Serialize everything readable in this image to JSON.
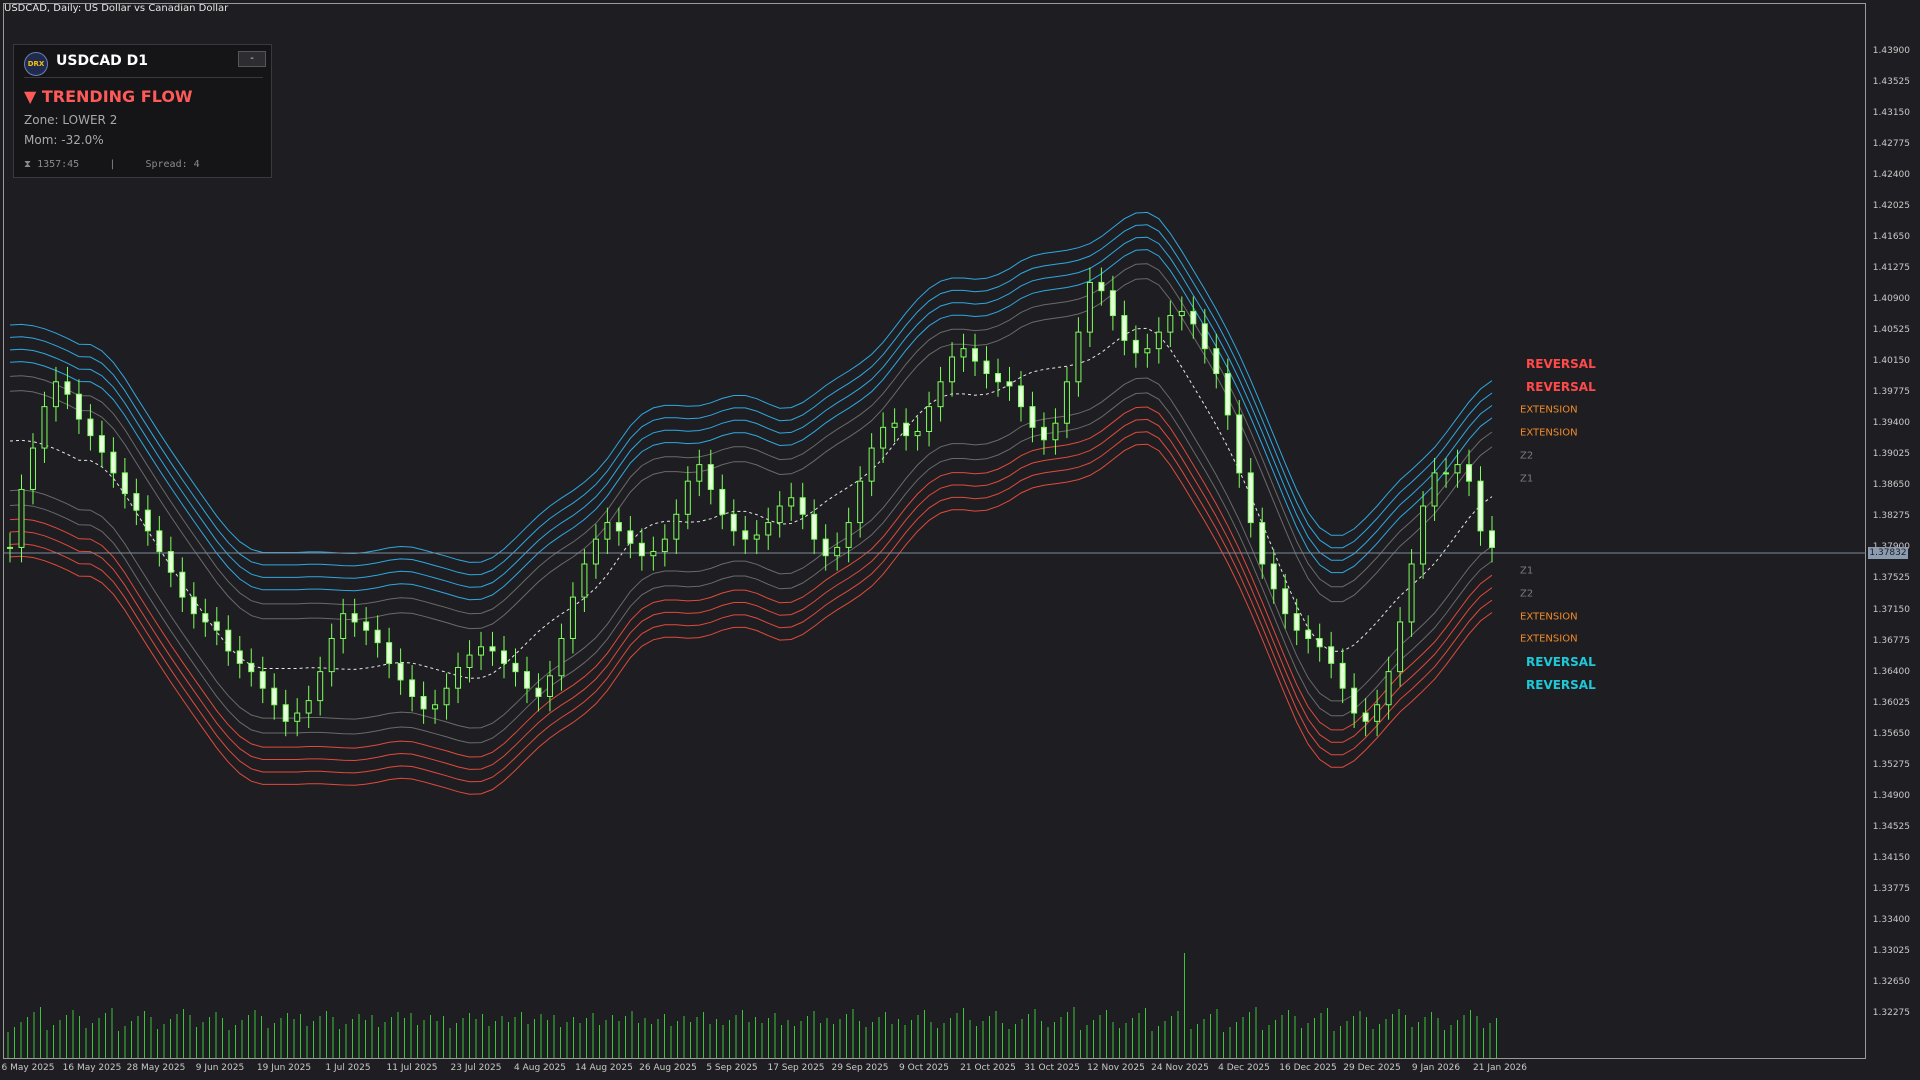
{
  "window": {
    "title": "USDCAD, Daily:  US Dollar vs Canadian Dollar"
  },
  "info_panel": {
    "logo_text": "DRX",
    "symbol": "USDCAD  D1",
    "minimize_label": "-",
    "signal": "▼ TRENDING FLOW",
    "zone": "Zone: LOWER 2",
    "momentum": "Mom: -32.0%",
    "timer_icon": "hourglass-icon",
    "timer": "1357:45",
    "divider": "|",
    "spread": "Spread: 4"
  },
  "price_axis": {
    "labels": [
      "1.43900",
      "1.43525",
      "1.43150",
      "1.42775",
      "1.42400",
      "1.42025",
      "1.41650",
      "1.41275",
      "1.40900",
      "1.40525",
      "1.40150",
      "1.39775",
      "1.39400",
      "1.39025",
      "1.38650",
      "1.38275",
      "1.37900",
      "1.37525",
      "1.37150",
      "1.36775",
      "1.36400",
      "1.36025",
      "1.35650",
      "1.35275",
      "1.34900",
      "1.34525",
      "1.34150",
      "1.33775",
      "1.33400",
      "1.33025",
      "1.32650",
      "1.32275"
    ],
    "current_price": "1.37832"
  },
  "time_axis": {
    "labels": [
      "6 May 2025",
      "16 May 2025",
      "28 May 2025",
      "9 Jun 2025",
      "19 Jun 2025",
      "1 Jul 2025",
      "11 Jul 2025",
      "23 Jul 2025",
      "4 Aug 2025",
      "14 Aug 2025",
      "26 Aug 2025",
      "5 Sep 2025",
      "17 Sep 2025",
      "29 Sep 2025",
      "9 Oct 2025",
      "21 Oct 2025",
      "31 Oct 2025",
      "12 Nov 2025",
      "24 Nov 2025",
      "4 Dec 2025",
      "16 Dec 2025",
      "29 Dec 2025",
      "9 Jan 2026",
      "21 Jan 2026"
    ]
  },
  "band_labels": {
    "upper_reversal_1": "REVERSAL",
    "upper_reversal_2": "REVERSAL",
    "upper_extension_1": "EXTENSION",
    "upper_extension_2": "EXTENSION",
    "upper_z2": "Z2",
    "upper_z1": "Z1",
    "lower_z1": "Z1",
    "lower_z2": "Z2",
    "lower_extension_1": "EXTENSION",
    "lower_extension_2": "EXTENSION",
    "lower_reversal_1": "REVERSAL",
    "lower_reversal_2": "REVERSAL"
  },
  "colors": {
    "background": "#1e1e22",
    "bull_candle": "#7dff5a",
    "bear_candle": "#7dff5a",
    "upper_bands": "#2fa8e0",
    "zone_bands": "#6a6a6a",
    "lower_bands": "#e04a3a",
    "midline": "#e8e8e8",
    "volume": "#39c43a",
    "reversal_upper_text": "#ff4a4a",
    "reversal_lower_text": "#1ec8d8",
    "extension_text": "#f08a2a",
    "zone_text": "#7a7a7a"
  },
  "chart_data": {
    "type": "candlestick",
    "symbol": "USDCAD",
    "timeframe": "Daily",
    "ylim": [
      1.32,
      1.441
    ],
    "current_price": 1.37832,
    "close": [
      1.379,
      1.386,
      1.391,
      1.396,
      1.399,
      1.3975,
      1.3945,
      1.3925,
      1.3905,
      1.388,
      1.3855,
      1.3835,
      1.381,
      1.3785,
      1.376,
      1.373,
      1.371,
      1.37,
      1.369,
      1.3665,
      1.365,
      1.364,
      1.362,
      1.36,
      1.358,
      1.359,
      1.3605,
      1.364,
      1.368,
      1.371,
      1.37,
      1.369,
      1.3675,
      1.365,
      1.363,
      1.361,
      1.3595,
      1.36,
      1.362,
      1.3645,
      1.366,
      1.367,
      1.3665,
      1.365,
      1.364,
      1.362,
      1.361,
      1.3635,
      1.368,
      1.373,
      1.377,
      1.38,
      1.382,
      1.381,
      1.3795,
      1.378,
      1.3785,
      1.38,
      1.383,
      1.387,
      1.389,
      1.386,
      1.383,
      1.381,
      1.38,
      1.3805,
      1.382,
      1.384,
      1.385,
      1.383,
      1.38,
      1.378,
      1.379,
      1.382,
      1.387,
      1.391,
      1.3935,
      1.394,
      1.3925,
      1.393,
      1.396,
      1.399,
      1.402,
      1.403,
      1.4015,
      1.4,
      1.399,
      1.3985,
      1.396,
      1.3935,
      1.392,
      1.394,
      1.399,
      1.405,
      1.411,
      1.41,
      1.407,
      1.404,
      1.4025,
      1.403,
      1.405,
      1.407,
      1.4075,
      1.406,
      1.403,
      1.4,
      1.395,
      1.388,
      1.382,
      1.377,
      1.374,
      1.371,
      1.369,
      1.368,
      1.367,
      1.365,
      1.362,
      1.359,
      1.358,
      1.36,
      1.364,
      1.37,
      1.377,
      1.384,
      1.388,
      1.388,
      1.389,
      1.387,
      1.381,
      1.379
    ],
    "bands": {
      "upper": [
        "reversal_2",
        "reversal_1",
        "extension_2",
        "extension_1",
        "z2",
        "z1"
      ],
      "mid": "dotted midline",
      "lower": [
        "z1",
        "z2",
        "extension_1",
        "extension_2",
        "reversal_1",
        "reversal_2"
      ]
    },
    "volume": "histogram, spike near 24 Nov 2025"
  }
}
